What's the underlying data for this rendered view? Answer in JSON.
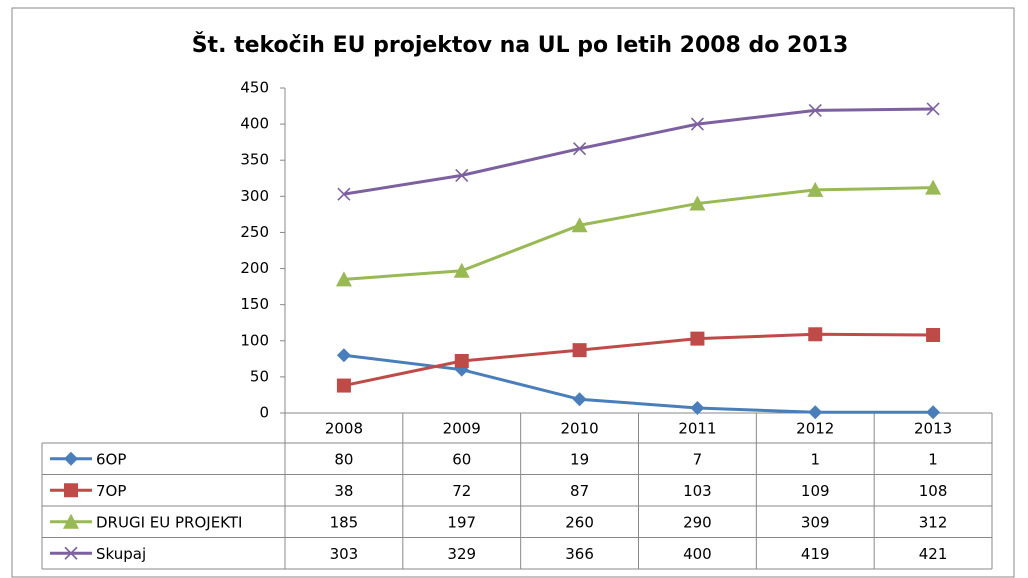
{
  "chart_data": {
    "type": "line",
    "title": "Št. tekočih EU projektov na UL po letih 2008 do 2013",
    "categories": [
      "2008",
      "2009",
      "2010",
      "2011",
      "2012",
      "2013"
    ],
    "series": [
      {
        "name": "6OP",
        "color": "#4a7ebb",
        "marker": "diamond",
        "values": [
          80,
          60,
          19,
          7,
          1,
          1
        ]
      },
      {
        "name": "7OP",
        "color": "#be4b48",
        "marker": "square",
        "values": [
          38,
          72,
          87,
          103,
          109,
          108
        ]
      },
      {
        "name": "DRUGI EU PROJEKTI",
        "color": "#98b954",
        "marker": "triangle",
        "values": [
          185,
          197,
          260,
          290,
          309,
          312
        ]
      },
      {
        "name": "Skupaj",
        "color": "#7d60a0",
        "marker": "x",
        "values": [
          303,
          329,
          366,
          400,
          419,
          421
        ]
      }
    ],
    "ylim": [
      0,
      450
    ],
    "yticks": [
      0,
      50,
      100,
      150,
      200,
      250,
      300,
      350,
      400,
      450
    ],
    "grid": false
  }
}
